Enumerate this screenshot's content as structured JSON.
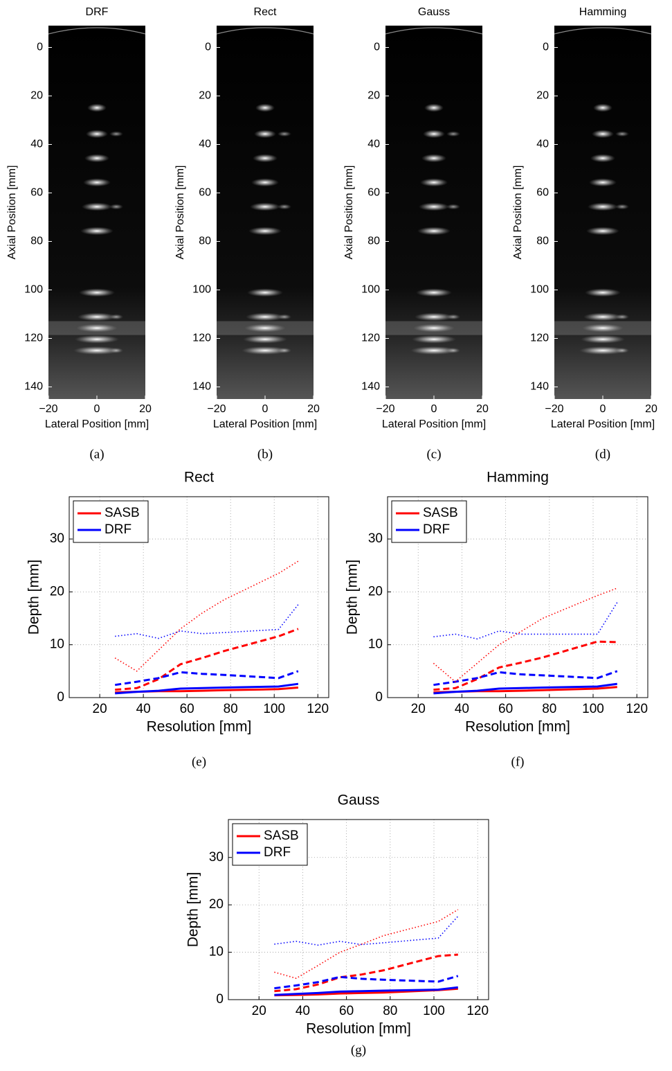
{
  "chart_data": [
    {
      "type": "image",
      "title": "DRF",
      "caption": "(a)",
      "xlabel": "Lateral Position [mm]",
      "ylabel": "Axial Position [mm]",
      "xlim": [
        -20,
        20
      ],
      "xticks": [
        {
          "value": -20,
          "label": "−20"
        },
        0,
        20
      ],
      "ylim": [
        -9,
        145
      ],
      "yticks": [
        0,
        20,
        40,
        60,
        80,
        100,
        120,
        140
      ],
      "y_direction": "reverse"
    },
    {
      "type": "image",
      "title": "Rect",
      "caption": "(b)",
      "xlabel": "Lateral Position [mm]",
      "ylabel": "Axial Position [mm]",
      "xlim": [
        -20,
        20
      ],
      "xticks": [
        {
          "value": -20,
          "label": "−20"
        },
        0,
        20
      ],
      "ylim": [
        -9,
        145
      ],
      "yticks": [
        0,
        20,
        40,
        60,
        80,
        100,
        120,
        140
      ],
      "y_direction": "reverse"
    },
    {
      "type": "image",
      "title": "Gauss",
      "caption": "(c)",
      "xlabel": "Lateral Position [mm]",
      "ylabel": "Axial Position [mm]",
      "xlim": [
        -20,
        20
      ],
      "xticks": [
        {
          "value": -20,
          "label": "−20"
        },
        0,
        20
      ],
      "ylim": [
        -9,
        145
      ],
      "yticks": [
        0,
        20,
        40,
        60,
        80,
        100,
        120,
        140
      ],
      "y_direction": "reverse"
    },
    {
      "type": "image",
      "title": "Hamming",
      "caption": "(d)",
      "xlabel": "Lateral Position [mm]",
      "ylabel": "Axial Position [mm]",
      "xlim": [
        -20,
        20
      ],
      "xticks": [
        {
          "value": -20,
          "label": "−20"
        },
        0,
        20
      ],
      "ylim": [
        -9,
        145
      ],
      "yticks": [
        0,
        20,
        40,
        60,
        80,
        100,
        120,
        140
      ],
      "y_direction": "reverse"
    },
    {
      "type": "line",
      "title": "Rect",
      "caption": "(e)",
      "xlabel": "Resolution [mm]",
      "ylabel": "Depth [mm]",
      "xlim": [
        6,
        125
      ],
      "xticks": [
        20,
        40,
        60,
        80,
        100,
        120
      ],
      "ylim": [
        0,
        38
      ],
      "yticks": [
        0,
        10,
        20,
        30
      ],
      "grid": true,
      "legend": "upper left",
      "x": [
        27,
        37,
        47,
        57,
        67,
        77,
        102,
        111
      ],
      "series": [
        {
          "name": "SASB",
          "color": "#ff0000",
          "dash": "solid",
          "values": [
            1.0,
            1.1,
            1.2,
            1.2,
            1.3,
            1.4,
            1.6,
            1.9
          ]
        },
        {
          "name": "DRF",
          "color": "#0000ff",
          "dash": "solid",
          "values": [
            0.8,
            1.1,
            1.3,
            1.7,
            1.8,
            1.9,
            2.1,
            2.6
          ]
        },
        {
          "color": "#ff0000",
          "dash": "dashed",
          "values": [
            1.5,
            1.8,
            3.5,
            6.3,
            7.5,
            8.8,
            11.6,
            13.0
          ]
        },
        {
          "color": "#0000ff",
          "dash": "dashed",
          "values": [
            2.4,
            3.0,
            3.7,
            4.8,
            4.5,
            4.3,
            3.7,
            5.0
          ]
        },
        {
          "color": "#ff0000",
          "dash": "dotted",
          "values": [
            7.5,
            5.0,
            9.0,
            13.0,
            16.0,
            18.5,
            23.5,
            25.8
          ]
        },
        {
          "color": "#0000ff",
          "dash": "dotted",
          "values": [
            11.6,
            12.1,
            11.2,
            12.6,
            12.1,
            12.3,
            12.9,
            17.6
          ]
        }
      ]
    },
    {
      "type": "line",
      "title": "Hamming",
      "caption": "(f)",
      "xlabel": "Resolution [mm]",
      "ylabel": "Depth [mm]",
      "xlim": [
        6,
        125
      ],
      "xticks": [
        20,
        40,
        60,
        80,
        100,
        120
      ],
      "ylim": [
        0,
        38
      ],
      "yticks": [
        0,
        10,
        20,
        30
      ],
      "grid": true,
      "legend": "upper left",
      "x": [
        27,
        37,
        47,
        57,
        67,
        77,
        102,
        111
      ],
      "series": [
        {
          "name": "SASB",
          "color": "#ff0000",
          "dash": "solid",
          "values": [
            1.0,
            1.1,
            1.2,
            1.2,
            1.3,
            1.4,
            1.7,
            2.0
          ]
        },
        {
          "name": "DRF",
          "color": "#0000ff",
          "dash": "solid",
          "values": [
            0.8,
            1.1,
            1.3,
            1.7,
            1.8,
            1.9,
            2.1,
            2.6
          ]
        },
        {
          "color": "#ff0000",
          "dash": "dashed",
          "values": [
            1.5,
            1.8,
            3.5,
            5.7,
            6.6,
            7.6,
            10.6,
            10.5
          ]
        },
        {
          "color": "#0000ff",
          "dash": "dashed",
          "values": [
            2.4,
            3.0,
            3.7,
            4.8,
            4.4,
            4.2,
            3.7,
            5.0
          ]
        },
        {
          "color": "#ff0000",
          "dash": "dotted",
          "values": [
            6.5,
            3.0,
            6.5,
            10.0,
            12.5,
            15.0,
            19.3,
            20.7
          ]
        },
        {
          "color": "#0000ff",
          "dash": "dotted",
          "values": [
            11.5,
            12.0,
            11.1,
            12.6,
            12.0,
            12.0,
            12.0,
            18.0
          ]
        }
      ]
    },
    {
      "type": "line",
      "title": "Gauss",
      "caption": "(g)",
      "xlabel": "Resolution [mm]",
      "ylabel": "Depth [mm]",
      "xlim": [
        6,
        125
      ],
      "xticks": [
        20,
        40,
        60,
        80,
        100,
        120
      ],
      "ylim": [
        0,
        38
      ],
      "yticks": [
        0,
        10,
        20,
        30
      ],
      "grid": true,
      "legend": "upper left",
      "x": [
        27,
        37,
        47,
        57,
        67,
        77,
        102,
        111
      ],
      "series": [
        {
          "name": "SASB",
          "color": "#ff0000",
          "dash": "solid",
          "values": [
            0.9,
            1.0,
            1.1,
            1.3,
            1.4,
            1.5,
            2.0,
            2.3
          ]
        },
        {
          "name": "DRF",
          "color": "#0000ff",
          "dash": "solid",
          "values": [
            1.0,
            1.2,
            1.4,
            1.7,
            1.8,
            1.9,
            2.1,
            2.6
          ]
        },
        {
          "color": "#ff0000",
          "dash": "dashed",
          "values": [
            1.8,
            2.2,
            3.2,
            4.7,
            5.3,
            6.2,
            9.2,
            9.5
          ]
        },
        {
          "color": "#0000ff",
          "dash": "dashed",
          "values": [
            2.4,
            3.0,
            3.7,
            4.8,
            4.4,
            4.2,
            3.8,
            5.0
          ]
        },
        {
          "color": "#ff0000",
          "dash": "dotted",
          "values": [
            5.8,
            4.5,
            7.2,
            10.0,
            11.7,
            13.5,
            16.5,
            19.0
          ]
        },
        {
          "color": "#0000ff",
          "dash": "dotted",
          "values": [
            11.7,
            12.3,
            11.5,
            12.3,
            11.6,
            12.0,
            13.0,
            17.6
          ]
        }
      ]
    }
  ]
}
